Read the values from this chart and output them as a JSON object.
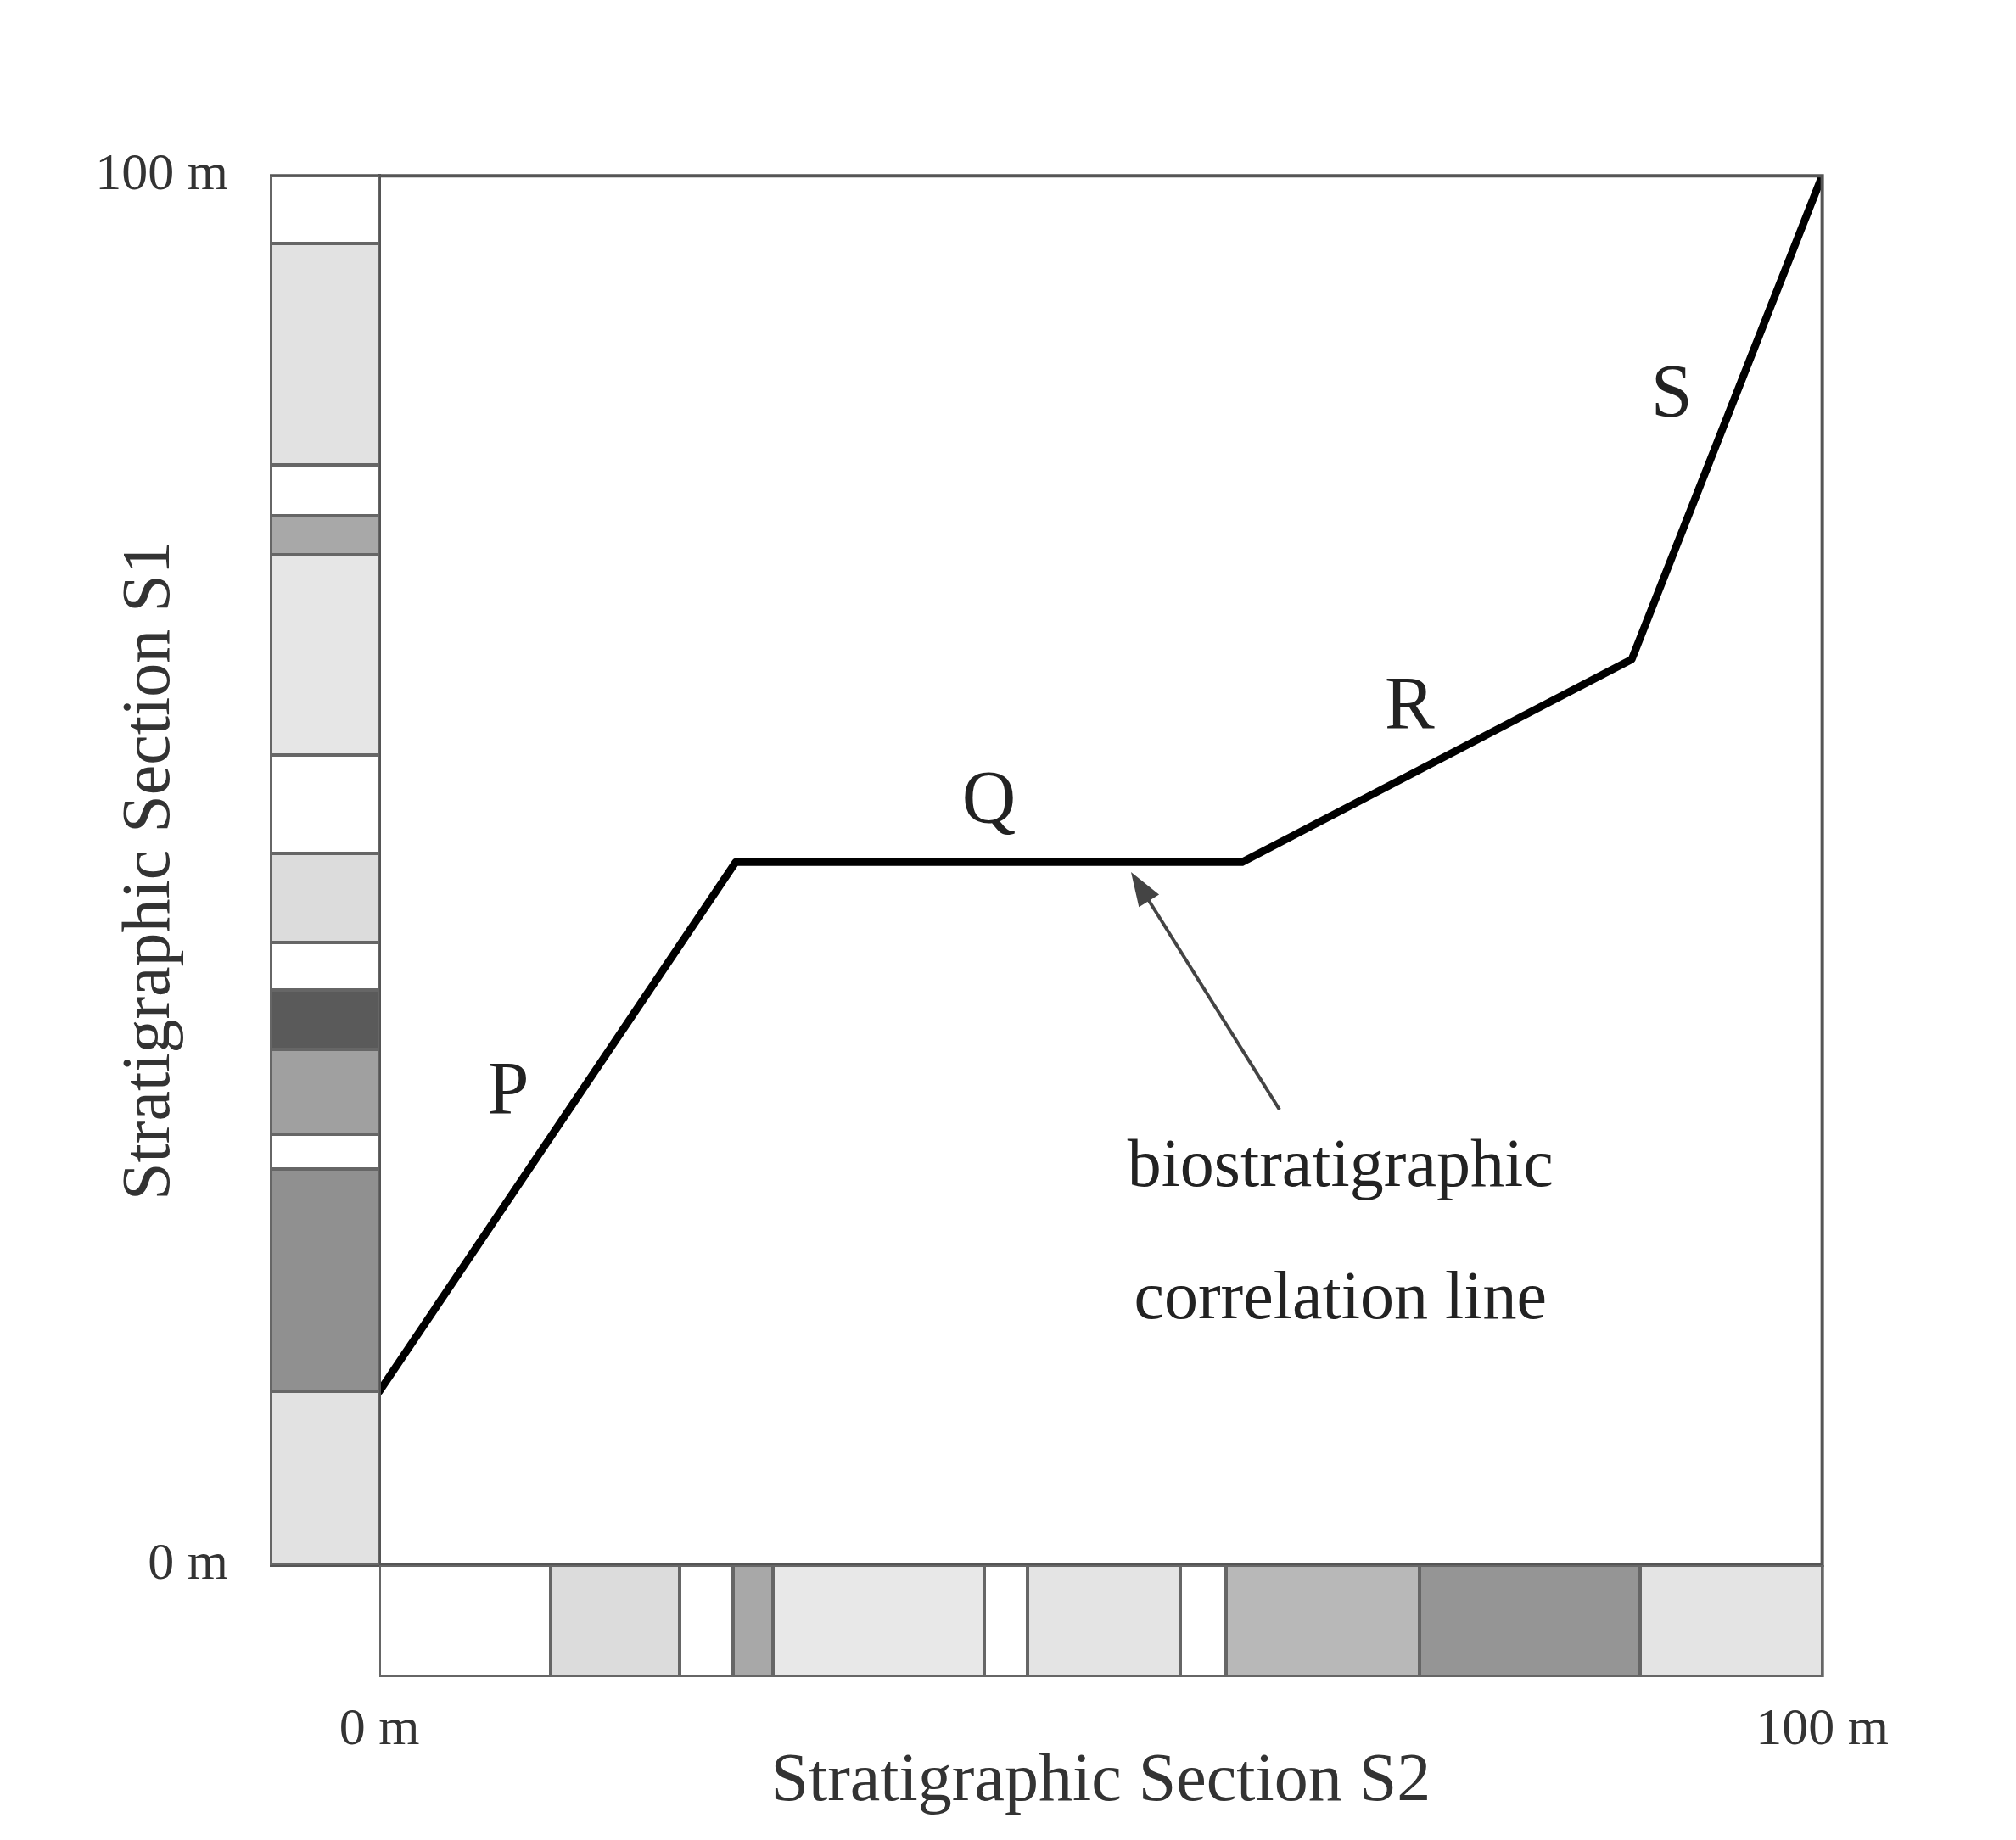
{
  "chart_data": {
    "type": "line",
    "xlabel": "Stratigraphic Section S2",
    "ylabel": "Stratigraphic Section S1",
    "x": [
      0,
      24.7,
      59.8,
      86.8,
      100
    ],
    "series": [
      {
        "color": "#000000",
        "values": [
          12.5,
          50.6,
          50.6,
          65.2,
          100
        ]
      }
    ],
    "xlim": [
      0,
      100
    ],
    "ylim": [
      0,
      100
    ],
    "xticks": [
      {
        "value": 0,
        "label": "0 m"
      },
      {
        "value": 100,
        "label": "100 m"
      }
    ],
    "yticks": [
      {
        "value": 0,
        "label": "0 m"
      },
      {
        "value": 100,
        "label": "100 m"
      }
    ],
    "annotations": [
      "P",
      "Q",
      "R",
      "S",
      "biostratigraphic correlation line"
    ]
  }
}
